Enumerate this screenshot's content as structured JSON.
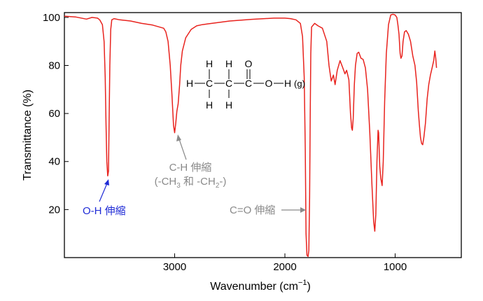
{
  "chart_data": {
    "type": "line",
    "xlabel": "Wavenumber (cm−1)",
    "xlabel_parts": {
      "main": "Wavenumber (cm",
      "sup": "−1",
      "close": ")"
    },
    "ylabel": "Transmittance (%)",
    "x_reversed": true,
    "xlim": [
      4000,
      400
    ],
    "ylim": [
      0,
      102
    ],
    "x_ticks": [
      3000,
      2000,
      1000
    ],
    "y_ticks": [
      20,
      40,
      60,
      80,
      100
    ],
    "grid": false,
    "colors": {
      "spectrum": "#e8231e",
      "axis": "#000000",
      "annotation_gray": "#8a8a8a",
      "annotation_blue": "#1f2bd6"
    },
    "series": [
      {
        "points": [
          [
            4000,
            100.5
          ],
          [
            3900,
            100.2
          ],
          [
            3800,
            99.3
          ],
          [
            3750,
            100.0
          ],
          [
            3700,
            99.7
          ],
          [
            3680,
            99.0
          ],
          [
            3655,
            97.0
          ],
          [
            3640,
            90.0
          ],
          [
            3630,
            75.0
          ],
          [
            3622,
            55.0
          ],
          [
            3615,
            40.0
          ],
          [
            3607,
            34.0
          ],
          [
            3600,
            36.0
          ],
          [
            3595,
            55.0
          ],
          [
            3588,
            80.0
          ],
          [
            3580,
            95.0
          ],
          [
            3570,
            99.0
          ],
          [
            3550,
            99.5
          ],
          [
            3500,
            99.0
          ],
          [
            3400,
            98.5
          ],
          [
            3300,
            97.5
          ],
          [
            3200,
            96.8
          ],
          [
            3100,
            95.5
          ],
          [
            3080,
            94.0
          ],
          [
            3060,
            90.0
          ],
          [
            3040,
            80.0
          ],
          [
            3025,
            68.0
          ],
          [
            3010,
            55.0
          ],
          [
            3000,
            52.0
          ],
          [
            2990,
            56.0
          ],
          [
            2980,
            61.0
          ],
          [
            2968,
            64.0
          ],
          [
            2955,
            72.0
          ],
          [
            2945,
            80.0
          ],
          [
            2930,
            86.0
          ],
          [
            2900,
            91.5
          ],
          [
            2850,
            95.0
          ],
          [
            2800,
            96.5
          ],
          [
            2750,
            97.0
          ],
          [
            2700,
            97.3
          ],
          [
            2500,
            98.5
          ],
          [
            2300,
            99.2
          ],
          [
            2100,
            99.7
          ],
          [
            2000,
            99.7
          ],
          [
            1950,
            99.5
          ],
          [
            1900,
            99.0
          ],
          [
            1860,
            97.5
          ],
          [
            1840,
            92.0
          ],
          [
            1825,
            75.0
          ],
          [
            1815,
            45.0
          ],
          [
            1808,
            10.0
          ],
          [
            1800,
            1.0
          ],
          [
            1790,
            0.5
          ],
          [
            1783,
            3.0
          ],
          [
            1776,
            25.0
          ],
          [
            1770,
            60.0
          ],
          [
            1765,
            85.0
          ],
          [
            1758,
            96.0
          ],
          [
            1730,
            97.5
          ],
          [
            1700,
            96.5
          ],
          [
            1660,
            95.5
          ],
          [
            1620,
            90.0
          ],
          [
            1600,
            80.0
          ],
          [
            1580,
            73.5
          ],
          [
            1560,
            76.0
          ],
          [
            1545,
            72.0
          ],
          [
            1525,
            78.0
          ],
          [
            1500,
            82.0
          ],
          [
            1475,
            79.0
          ],
          [
            1455,
            76.5
          ],
          [
            1440,
            78.0
          ],
          [
            1420,
            74.0
          ],
          [
            1405,
            60.0
          ],
          [
            1395,
            54.0
          ],
          [
            1388,
            53.0
          ],
          [
            1380,
            58.0
          ],
          [
            1370,
            72.0
          ],
          [
            1360,
            80.0
          ],
          [
            1345,
            85.0
          ],
          [
            1330,
            85.5
          ],
          [
            1310,
            83.0
          ],
          [
            1290,
            82.5
          ],
          [
            1270,
            79.0
          ],
          [
            1250,
            70.0
          ],
          [
            1230,
            52.0
          ],
          [
            1210,
            30.0
          ],
          [
            1195,
            15.0
          ],
          [
            1185,
            11.0
          ],
          [
            1175,
            18.0
          ],
          [
            1165,
            40.0
          ],
          [
            1155,
            53.0
          ],
          [
            1150,
            52.0
          ],
          [
            1140,
            38.0
          ],
          [
            1130,
            33.0
          ],
          [
            1118,
            30.0
          ],
          [
            1108,
            40.0
          ],
          [
            1095,
            65.0
          ],
          [
            1080,
            85.0
          ],
          [
            1060,
            97.0
          ],
          [
            1040,
            101.0
          ],
          [
            1020,
            101.3
          ],
          [
            1000,
            101.0
          ],
          [
            985,
            100.0
          ],
          [
            975,
            97.0
          ],
          [
            965,
            93.0
          ],
          [
            955,
            85.0
          ],
          [
            947,
            83.0
          ],
          [
            938,
            84.0
          ],
          [
            928,
            90.0
          ],
          [
            915,
            94.0
          ],
          [
            900,
            94.5
          ],
          [
            880,
            93.0
          ],
          [
            860,
            90.0
          ],
          [
            840,
            84.0
          ],
          [
            820,
            80.0
          ],
          [
            805,
            73.0
          ],
          [
            790,
            61.0
          ],
          [
            780,
            55.0
          ],
          [
            770,
            50.0
          ],
          [
            760,
            47.5
          ],
          [
            750,
            47.0
          ],
          [
            740,
            50.0
          ],
          [
            725,
            56.0
          ],
          [
            710,
            66.0
          ],
          [
            695,
            72.0
          ],
          [
            680,
            76.0
          ],
          [
            665,
            79.0
          ],
          [
            650,
            82.0
          ],
          [
            640,
            86.0
          ],
          [
            632,
            83.0
          ],
          [
            625,
            79.0
          ]
        ]
      }
    ],
    "annotations": {
      "oh": "O-H 伸縮",
      "ch_line1": "C-H 伸縮",
      "ch_line2": {
        "prefix": "(-CH",
        "sub1": "3",
        "middle": " 和 -CH",
        "sub2": "2",
        "suffix": "-)"
      },
      "co": "C=O 伸縮"
    },
    "molecule": {
      "h_atoms": [
        "H",
        "H",
        "H",
        "H",
        "H",
        "H"
      ],
      "carbons": [
        "C",
        "C",
        "C"
      ],
      "oxygen_double": "O",
      "oxygen_single": "O",
      "h_end": "H",
      "phase": "(g)"
    }
  }
}
